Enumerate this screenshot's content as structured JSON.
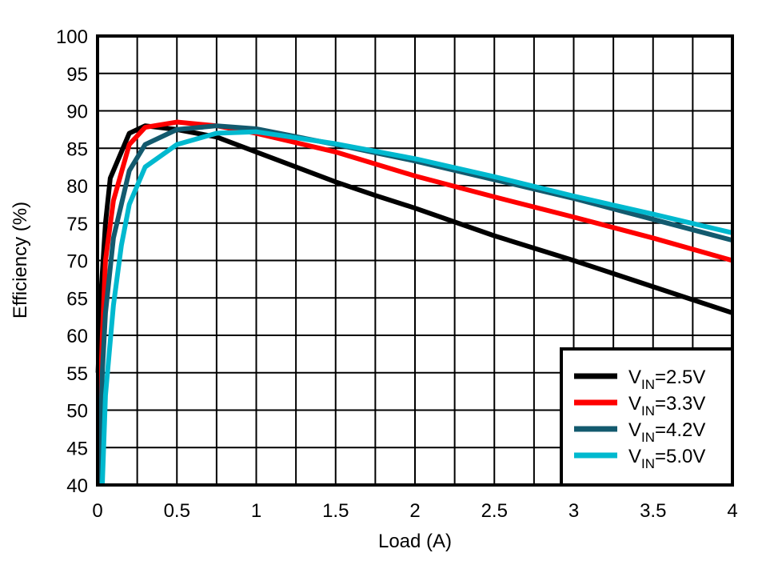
{
  "chart_data": {
    "type": "line",
    "xlabel": "Load (A)",
    "ylabel": "Efficiency (%)",
    "xlim": [
      0,
      4
    ],
    "ylim": [
      40,
      100
    ],
    "xticks": [
      0,
      0.5,
      1,
      1.5,
      2,
      2.5,
      3,
      3.5,
      4
    ],
    "xtick_labels": [
      "0",
      "0.5",
      "1",
      "1.5",
      "2",
      "2.5",
      "3",
      "3.5",
      "4"
    ],
    "yticks": [
      40,
      45,
      50,
      55,
      60,
      65,
      70,
      75,
      80,
      85,
      90,
      95,
      100
    ],
    "ytick_labels": [
      "40",
      "45",
      "50",
      "55",
      "60",
      "65",
      "70",
      "75",
      "80",
      "85",
      "90",
      "95",
      "100"
    ],
    "grid": true,
    "legend_placement": "bottom-right",
    "series": [
      {
        "name": "VIN=2.5V",
        "label_main": "V",
        "label_sub": "IN",
        "label_rest": "=2.5V",
        "color": "#000000",
        "x": [
          0.003,
          0.02,
          0.05,
          0.08,
          0.1,
          0.2,
          0.3,
          0.5,
          0.75,
          1,
          1.5,
          1.75,
          2,
          2.5,
          3,
          3.5,
          4
        ],
        "y": [
          55,
          65,
          75,
          81,
          82,
          87,
          88,
          87.5,
          86.5,
          84.5,
          80.5,
          78.7,
          77,
          73.3,
          70,
          66.5,
          63
        ]
      },
      {
        "name": "VIN=3.3V",
        "label_main": "V",
        "label_sub": "IN",
        "label_rest": "=3.3V",
        "color": "#ff0000",
        "x": [
          0.008,
          0.03,
          0.05,
          0.1,
          0.2,
          0.3,
          0.5,
          0.75,
          1,
          1.5,
          2,
          2.5,
          3,
          3.5,
          4
        ],
        "y": [
          45,
          60,
          70,
          78,
          85.5,
          87.8,
          88.5,
          88,
          87,
          84.5,
          81.3,
          78.5,
          75.8,
          73,
          70
        ]
      },
      {
        "name": "VIN=4.2V",
        "label_main": "V",
        "label_sub": "IN",
        "label_rest": "=4.2V",
        "color": "#135a6e",
        "x": [
          0.01,
          0.03,
          0.05,
          0.1,
          0.2,
          0.3,
          0.5,
          0.75,
          1,
          1.5,
          2,
          2.5,
          3,
          3.5,
          4
        ],
        "y": [
          40,
          55,
          63,
          73,
          82,
          85.5,
          87.5,
          88,
          87.6,
          85.5,
          83.3,
          80.8,
          78.3,
          75.5,
          72.7
        ]
      },
      {
        "name": "VIN=5.0V",
        "label_main": "V",
        "label_sub": "IN",
        "label_rest": "=5.0V",
        "color": "#00b9cf",
        "x": [
          0.03,
          0.05,
          0.1,
          0.15,
          0.2,
          0.3,
          0.5,
          0.75,
          1,
          1.5,
          2,
          2.5,
          3,
          3.5,
          4
        ],
        "y": [
          40,
          52,
          64,
          72,
          77.5,
          82.5,
          85.5,
          87,
          87.2,
          85.6,
          83.6,
          81.2,
          78.6,
          76.2,
          73.7
        ]
      }
    ]
  }
}
